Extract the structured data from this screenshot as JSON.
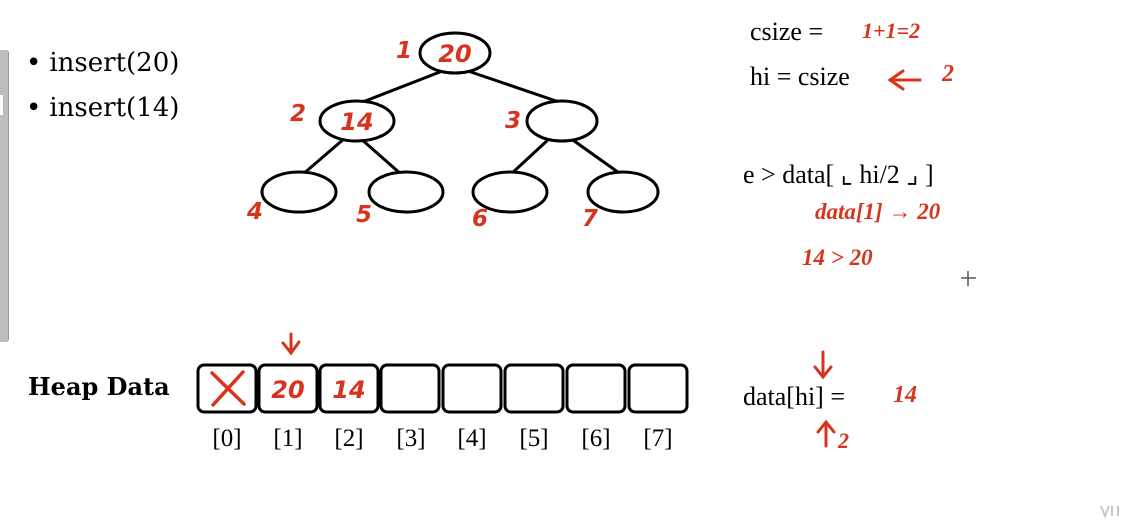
{
  "bullets": [
    "insert(20)",
    "insert(14)"
  ],
  "tree": {
    "nodes": [
      {
        "index": "1",
        "value": "20"
      },
      {
        "index": "2",
        "value": "14"
      },
      {
        "index": "3",
        "value": ""
      },
      {
        "index": "4",
        "value": ""
      },
      {
        "index": "5",
        "value": ""
      },
      {
        "index": "6",
        "value": ""
      },
      {
        "index": "7",
        "value": ""
      }
    ]
  },
  "heap": {
    "label": "Heap Data",
    "cells": [
      "X",
      "20",
      "14",
      "",
      "",
      "",
      "",
      ""
    ],
    "indices": [
      "[0]",
      "[1]",
      "[2]",
      "[3]",
      "[4]",
      "[5]",
      "[6]",
      "[7]"
    ]
  },
  "notes": {
    "csize_label": "csize =",
    "csize_hand": "1+1=2",
    "hi_label": "hi = csize",
    "hi_hand": "2",
    "cond_label": "e > data[ ⌞ hi/2 ⌟ ]",
    "cond_hand_1": "data[1] → 20",
    "cond_hand_2": "14 > 20",
    "assign_label": "data[hi] =",
    "assign_hand": "14",
    "assign_sub": "2"
  },
  "colors": {
    "ink": "#000000",
    "annotation": "#d8331f",
    "sidebar": "#bdbdbd"
  }
}
